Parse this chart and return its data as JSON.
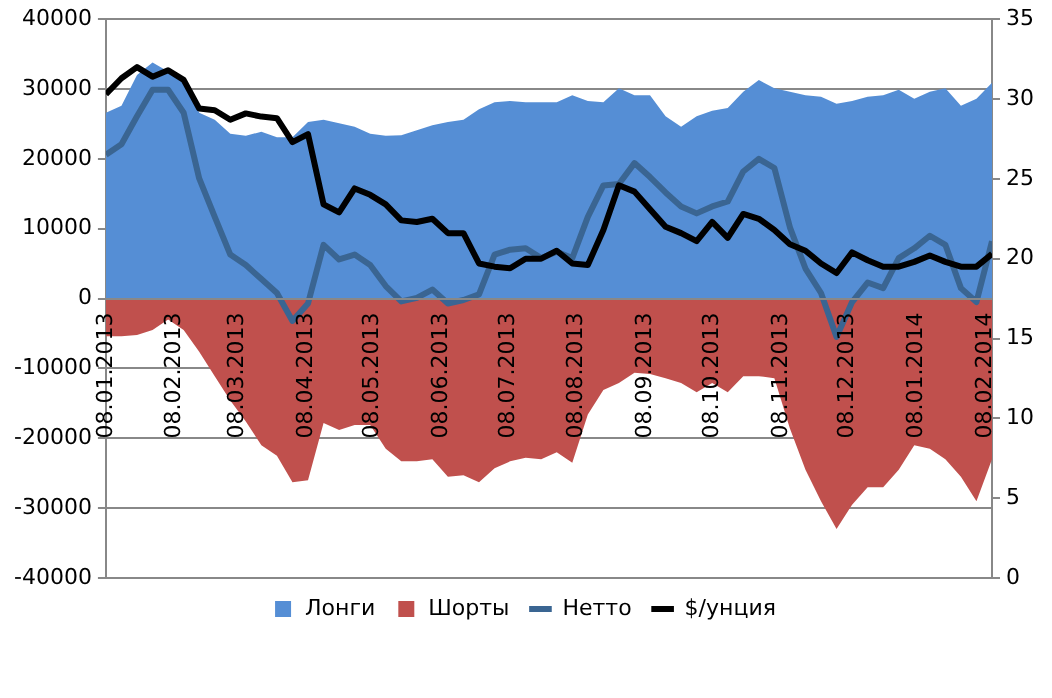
{
  "chart_data": {
    "type": "area",
    "x": [
      "2013-01-08",
      "2013-01-15",
      "2013-01-22",
      "2013-01-29",
      "2013-02-05",
      "2013-02-12",
      "2013-02-19",
      "2013-02-26",
      "2013-03-05",
      "2013-03-12",
      "2013-03-19",
      "2013-03-26",
      "2013-04-02",
      "2013-04-09",
      "2013-04-16",
      "2013-04-23",
      "2013-04-30",
      "2013-05-07",
      "2013-05-14",
      "2013-05-21",
      "2013-05-28",
      "2013-06-04",
      "2013-06-11",
      "2013-06-18",
      "2013-06-25",
      "2013-07-02",
      "2013-07-09",
      "2013-07-16",
      "2013-07-23",
      "2013-07-30",
      "2013-08-06",
      "2013-08-13",
      "2013-08-20",
      "2013-08-27",
      "2013-09-03",
      "2013-09-10",
      "2013-09-17",
      "2013-09-24",
      "2013-10-01",
      "2013-10-08",
      "2013-10-15",
      "2013-10-22",
      "2013-10-29",
      "2013-11-05",
      "2013-11-12",
      "2013-11-19",
      "2013-11-26",
      "2013-12-03",
      "2013-12-10",
      "2013-12-17",
      "2013-12-24",
      "2013-12-31",
      "2014-01-07",
      "2014-01-14",
      "2014-01-21",
      "2014-01-28",
      "2014-02-04",
      "2014-02-11"
    ],
    "series": [
      {
        "name": "Лонги",
        "color": "#558ed5",
        "values": [
          26600,
          27600,
          32000,
          33800,
          32500,
          31000,
          26600,
          25600,
          23600,
          23300,
          23900,
          23100,
          23100,
          25300,
          25600,
          25100,
          24600,
          23600,
          23300,
          23400,
          24100,
          24800,
          25300,
          25600,
          27100,
          28100,
          28300,
          28100,
          28100,
          28100,
          29100,
          28300,
          28100,
          30100,
          29100,
          29100,
          26100,
          24600,
          26100,
          26900,
          27300,
          29600,
          31300,
          30100,
          29600,
          29100,
          28900,
          27900,
          28300,
          28900,
          29100,
          29900,
          28600,
          29600,
          30100,
          27600,
          28600,
          30900
        ]
      },
      {
        "name": "Шорты",
        "color": "#c0504d",
        "values": [
          -5400,
          -5400,
          -5200,
          -4500,
          -3000,
          -4500,
          -7600,
          -11100,
          -14600,
          -17600,
          -21000,
          -22500,
          -26300,
          -26000,
          -17800,
          -18800,
          -18100,
          -18100,
          -21500,
          -23300,
          -23300,
          -23000,
          -25500,
          -25300,
          -26300,
          -24300,
          -23300,
          -22800,
          -23000,
          -22000,
          -23500,
          -16600,
          -13100,
          -12100,
          -10600,
          -10800,
          -11400,
          -12100,
          -13400,
          -12100,
          -13400,
          -11100,
          -11100,
          -11400,
          -18600,
          -24500,
          -29000,
          -33000,
          -29500,
          -27000,
          -27000,
          -24500,
          -21000,
          -21500,
          -23000,
          -25500,
          -29000,
          -23000
        ]
      },
      {
        "name": "Нетто",
        "type": "line",
        "color": "#3a6592",
        "values": [
          20600,
          22100,
          26100,
          29900,
          29900,
          26600,
          17200,
          11700,
          6300,
          4800,
          2800,
          800,
          -3200,
          -700,
          7700,
          5600,
          6300,
          4800,
          1800,
          -400,
          100,
          1300,
          -700,
          -200,
          600,
          6300,
          7000,
          7200,
          5800,
          6700,
          5800,
          11700,
          16200,
          16400,
          19400,
          17400,
          15200,
          13200,
          12200,
          13200,
          13900,
          18200,
          20000,
          18700,
          10200,
          4300,
          800,
          -5500,
          -500,
          2300,
          1500,
          5800,
          7200,
          9000,
          7700,
          1500,
          -500,
          8200
        ]
      },
      {
        "name": "$/унция",
        "type": "line",
        "axis": "y2",
        "color": "#000000",
        "values": [
          30.3,
          31.3,
          32.0,
          31.4,
          31.8,
          31.2,
          29.4,
          29.3,
          28.7,
          29.1,
          28.9,
          28.8,
          27.3,
          27.8,
          23.4,
          22.9,
          24.4,
          24.0,
          23.4,
          22.4,
          22.3,
          22.5,
          21.6,
          21.6,
          19.7,
          19.5,
          19.4,
          20.0,
          20.0,
          20.5,
          19.7,
          19.6,
          21.8,
          24.6,
          24.2,
          23.1,
          22.0,
          21.6,
          21.1,
          22.3,
          21.3,
          22.8,
          22.5,
          21.8,
          20.9,
          20.5,
          19.7,
          19.1,
          20.4,
          19.9,
          19.5,
          19.5,
          19.8,
          20.2,
          19.8,
          19.5,
          19.5,
          20.3
        ]
      }
    ],
    "xlim": [
      "2013-01-08",
      "2014-02-11"
    ],
    "xticks": [
      {
        "value": "2013-01-08",
        "label": "08.01.2013"
      },
      {
        "value": "2013-02-08",
        "label": "08.02.2013"
      },
      {
        "value": "2013-03-08",
        "label": "08.03.2013"
      },
      {
        "value": "2013-04-08",
        "label": "08.04.2013"
      },
      {
        "value": "2013-05-08",
        "label": "08.05.2013"
      },
      {
        "value": "2013-06-08",
        "label": "08.06.2013"
      },
      {
        "value": "2013-07-08",
        "label": "08.07.2013"
      },
      {
        "value": "2013-08-08",
        "label": "08.08.2013"
      },
      {
        "value": "2013-09-08",
        "label": "08.09.2013"
      },
      {
        "value": "2013-10-08",
        "label": "08.10.2013"
      },
      {
        "value": "2013-11-08",
        "label": "08.11.2013"
      },
      {
        "value": "2013-12-08",
        "label": "08.12.2013"
      },
      {
        "value": "2014-01-08",
        "label": "08.01.2014"
      },
      {
        "value": "2014-02-08",
        "label": "08.02.2014"
      }
    ],
    "ylim": [
      -40000,
      40000
    ],
    "yticks": [
      -40000,
      -30000,
      -20000,
      -10000,
      0,
      10000,
      20000,
      30000,
      40000
    ],
    "y2lim": [
      0,
      35
    ],
    "y2ticks": [
      0,
      5,
      10,
      15,
      20,
      25,
      30,
      35
    ],
    "grid": "y",
    "legend": "bottom",
    "marker": "none",
    "line_style": "solid"
  }
}
